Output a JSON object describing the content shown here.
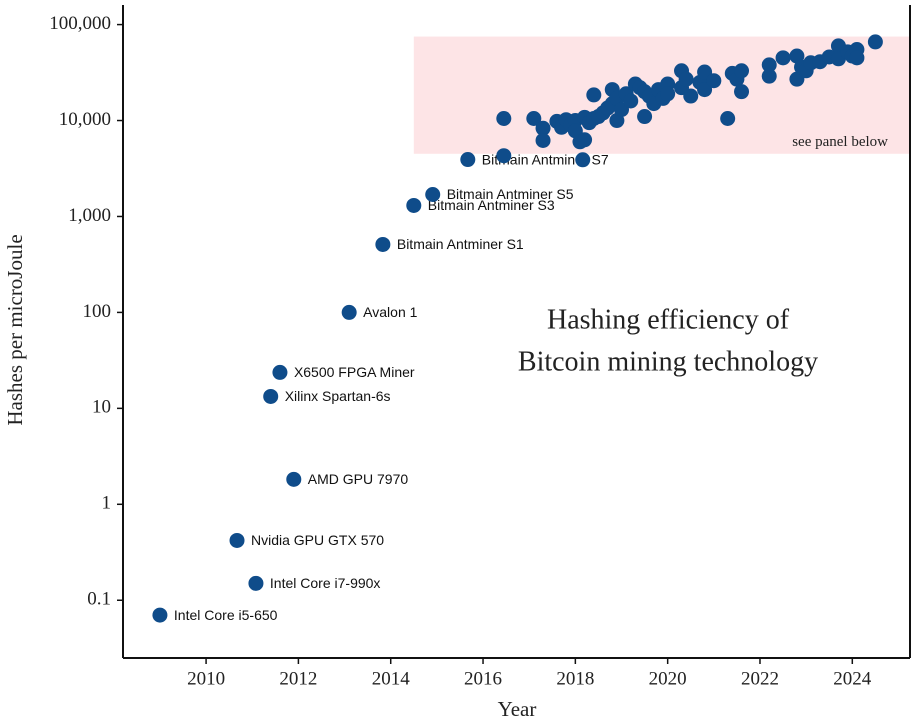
{
  "chart_data": {
    "type": "scatter",
    "annotation": [
      "Hashing efficiency of",
      "Bitcoin mining technology"
    ],
    "x_label": "Year",
    "y_label": "Hashes per microJoule",
    "color": "#0f4c8a",
    "log_y": true,
    "xlim": [
      2008.2,
      2025.25
    ],
    "ylim": [
      0.025,
      160000
    ],
    "xticks": [
      2010,
      2012,
      2014,
      2016,
      2018,
      2020,
      2022,
      2024
    ],
    "yticks": [
      0.1,
      1,
      10,
      100,
      {
        "value": 1000,
        "label": "1,000"
      },
      {
        "value": 10000,
        "label": "10,000"
      },
      {
        "value": 100000,
        "label": "100,000"
      }
    ],
    "highlight": {
      "xlim": [
        2014.5,
        2025.25
      ],
      "ylim": [
        4500,
        75000
      ],
      "label": "see panel below",
      "color": "#fde4e6"
    },
    "x": [
      2009.0,
      2011.08,
      2010.67,
      2011.9,
      2011.4,
      2011.6,
      2013.1,
      2013.83,
      2014.5,
      2014.91,
      2015.67,
      2016.45,
      2016.45,
      2017.1,
      2017.3,
      2017.3,
      2017.6,
      2017.7,
      2017.8,
      2017.9,
      2018.0,
      2018.0,
      2018.1,
      2018.2,
      2018.16,
      2018.2,
      2018.3,
      2018.4,
      2018.4,
      2018.5,
      2018.6,
      2018.7,
      2018.8,
      2018.8,
      2018.9,
      2018.9,
      2019.0,
      2019.1,
      2019.2,
      2019.3,
      2019.4,
      2019.5,
      2019.5,
      2019.6,
      2019.7,
      2019.8,
      2019.9,
      2020.0,
      2020.0,
      2020.3,
      2020.3,
      2020.4,
      2020.5,
      2020.7,
      2020.8,
      2020.8,
      2021.0,
      2021.3,
      2021.4,
      2021.5,
      2021.6,
      2021.6,
      2022.2,
      2022.2,
      2022.5,
      2022.8,
      2022.8,
      2022.9,
      2023.0,
      2023.1,
      2023.3,
      2023.5,
      2023.7,
      2023.7,
      2023.9,
      2024.0,
      2024.1,
      2024.1,
      2024.5
    ],
    "values": [
      0.07,
      0.15,
      0.42,
      1.82,
      13.3,
      23.7,
      100,
      511,
      1302,
      1694,
      3920,
      10500,
      4300,
      10500,
      8300,
      6200,
      9800,
      8500,
      10200,
      9000,
      10000,
      7800,
      6000,
      6300,
      3900,
      10800,
      9500,
      18500,
      10500,
      11000,
      12000,
      13500,
      15000,
      21000,
      17000,
      10000,
      13000,
      19000,
      16000,
      24000,
      22000,
      20000,
      11000,
      18000,
      15000,
      21000,
      17000,
      24000,
      19000,
      33000,
      22000,
      27000,
      18000,
      25000,
      32000,
      21000,
      26000,
      10500,
      31000,
      27000,
      33000,
      20000,
      38000,
      29000,
      45000,
      47000,
      27000,
      36000,
      33000,
      40000,
      41000,
      46000,
      60000,
      44000,
      52000,
      47000,
      55000,
      45000,
      66000
    ],
    "labels": [
      "Intel Core i5-650",
      "Intel Core i7-990x",
      "Nvidia GPU GTX 570",
      "AMD GPU 7970",
      "Xilinx Spartan-6s",
      "X6500 FPGA Miner",
      "Avalon 1",
      "Bitmain Antminer S1",
      "Bitmain Antminer S3",
      "Bitmain Antminer S5",
      "Bitmain Antminer S7",
      null,
      null,
      null,
      null,
      null,
      null,
      null,
      null,
      null,
      null,
      null,
      null,
      null,
      null,
      null,
      null,
      null,
      null,
      null,
      null,
      null,
      null,
      null,
      null,
      null,
      null,
      null,
      null,
      null,
      null,
      null,
      null,
      null,
      null,
      null,
      null,
      null,
      null,
      null,
      null,
      null,
      null,
      null,
      null,
      null,
      null,
      null,
      null,
      null,
      null,
      null,
      null,
      null,
      null,
      null,
      null,
      null,
      null,
      null,
      null,
      null,
      null,
      null,
      null,
      null,
      null,
      null,
      null
    ]
  }
}
